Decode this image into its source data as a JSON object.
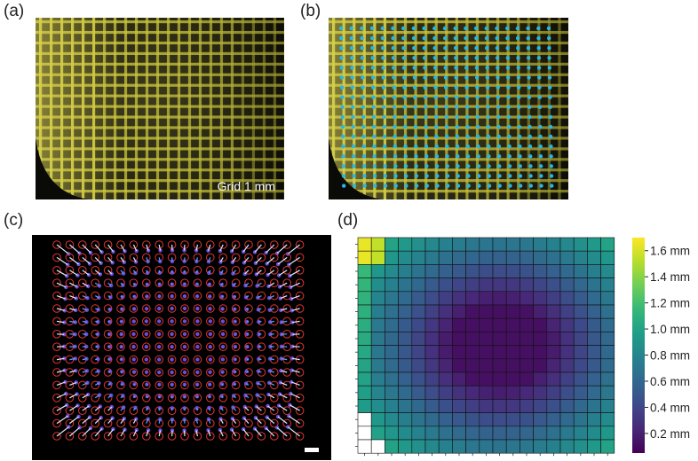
{
  "panels": {
    "a": {
      "label": "(a)",
      "scale_text": "Grid 1 mm"
    },
    "b": {
      "label": "(b)"
    },
    "c": {
      "label": "(c)"
    },
    "d": {
      "label": "(d)"
    }
  },
  "colors": {
    "grid_yellow": "#c9c43a",
    "photo_dark": "#1a1a10",
    "dot_cyan": "#27b7e6",
    "circle_red": "#e0342f",
    "arrow_blue": "#5aa0ff",
    "arrow_white": "#dfe8ff"
  },
  "heatmap": {
    "colormap": "viridis",
    "colorbar_ticks": [
      "1.6 mm",
      "1.4 mm",
      "1.2 mm",
      "1.0 mm",
      "0.8 mm",
      "0.6 mm",
      "0.4 mm",
      "0.2 mm"
    ],
    "colorbar_tick_values": [
      1.6,
      1.4,
      1.2,
      1.0,
      0.8,
      0.6,
      0.4,
      0.2
    ],
    "value_range": [
      0.05,
      1.7
    ]
  }
}
